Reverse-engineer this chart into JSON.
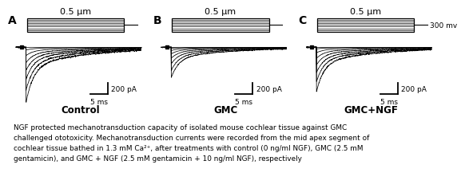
{
  "panel_labels": [
    "A",
    "B",
    "C"
  ],
  "panel_titles": [
    "0.5 μm",
    "0.5 μm",
    "0.5 μm"
  ],
  "panel_names": [
    "Control",
    "GMC",
    "GMC+NGF"
  ],
  "scale_bar_y": "200 pA",
  "scale_bar_x": "5 ms",
  "mv_label": "300 mv",
  "bg_color": "#ffffff",
  "trace_color": "#000000",
  "n_traces": 7,
  "amps_A": [
    1.0,
    0.78,
    0.58,
    0.42,
    0.28,
    0.15,
    0.05
  ],
  "amps_B": [
    0.55,
    0.42,
    0.3,
    0.2,
    0.12,
    0.06,
    0.02
  ],
  "amps_C": [
    0.8,
    0.62,
    0.46,
    0.32,
    0.2,
    0.1,
    0.03
  ],
  "caption_line1": "NGF protected mechanotransduction capacity of isolated mouse cochlear tissue against GMC",
  "caption_line2": "challenged ototoxicity. Mechanotransduction currents were recorded from the mid apex segment of",
  "caption_line3": "cochlear tissue bathed in 1.3 mM Ca²⁺, after treatments with control (0 ng/ml NGF), GMC (2.5 mM",
  "caption_line4": "gentamicin), and GMC + NGF (2.5 mM gentamicin + 10 ng/ml NGF), respectively"
}
